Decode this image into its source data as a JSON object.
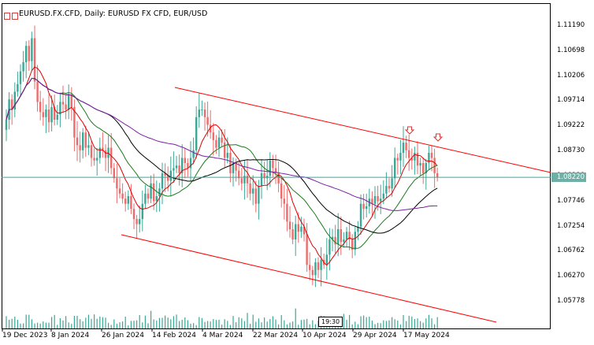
{
  "window": {
    "title": "EURUSD.FX.CFD, Daily:  EURUSD FX CFD, EUR/USD",
    "icons": [
      "chart-window-icon",
      "properties-icon"
    ]
  },
  "current_price": "1.08220",
  "time_marker": "19:30",
  "colors": {
    "bull": "#3aa896",
    "bear": "#ee6b6b",
    "channel": "#ff0000",
    "price_line": "#3aa896",
    "ma_fast": "#e00000",
    "ma_mid": "#1c7a1c",
    "ma_slow": "#000000",
    "ma_long": "#7a1fa2",
    "volume": "#3aa896"
  },
  "chart_data": {
    "type": "candlestick",
    "symbol": "EURUSD.FX.CFD",
    "timeframe": "Daily",
    "y_axis": {
      "ticks": [
        "1.11190",
        "1.10698",
        "1.10206",
        "1.09714",
        "1.09222",
        "1.08730",
        "1.08238",
        "1.07746",
        "1.07254",
        "1.06762",
        "1.06270",
        "1.05778"
      ],
      "ylim": [
        1.0552,
        1.114
      ]
    },
    "x_axis": {
      "ticks": [
        "19 Dec 2023",
        "8 Jan 2024",
        "26 Jan 2024",
        "14 Feb 2024",
        "4 Mar 2024",
        "22 Mar 2024",
        "10 Apr 2024",
        "29 Apr 2024",
        "17 May 2024"
      ]
    },
    "closes": [
      1.0935,
      1.0975,
      1.0955,
      1.099,
      1.1005,
      1.103,
      1.1048,
      1.108,
      1.105,
      1.1095,
      1.101,
      1.097,
      1.095,
      1.094,
      1.0955,
      1.093,
      1.096,
      1.0935,
      1.0945,
      1.097,
      1.0965,
      1.0955,
      1.0985,
      1.096,
      1.09,
      1.0885,
      1.0875,
      1.091,
      1.088,
      1.0885,
      1.086,
      1.0855,
      1.086,
      1.088,
      1.0875,
      1.086,
      1.088,
      1.084,
      1.082,
      1.08,
      1.079,
      1.078,
      1.077,
      1.0785,
      1.076,
      1.074,
      1.073,
      1.074,
      1.077,
      1.079,
      1.078,
      1.081,
      1.0775,
      1.0785,
      1.08,
      1.083,
      1.0825,
      1.0815,
      1.0835,
      1.084,
      1.0845,
      1.083,
      1.086,
      1.085,
      1.084,
      1.086,
      1.0875,
      1.094,
      1.0955,
      1.0955,
      1.094,
      1.0925,
      1.091,
      1.0895,
      1.088,
      1.09,
      1.089,
      1.086,
      1.087,
      1.083,
      1.085,
      1.0835,
      1.082,
      1.081,
      1.0825,
      1.081,
      1.079,
      1.08,
      1.077,
      1.0805,
      1.083,
      1.082,
      1.0825,
      1.0855,
      1.084,
      1.083,
      1.081,
      1.078,
      1.077,
      1.0735,
      1.072,
      1.07,
      1.073,
      1.0715,
      1.0725,
      1.071,
      1.065,
      1.064,
      1.063,
      1.0655,
      1.064,
      1.066,
      1.065,
      1.067,
      1.07,
      1.0705,
      1.069,
      1.072,
      1.0695,
      1.07,
      1.0715,
      1.07,
      1.068,
      1.0715,
      1.0725,
      1.077,
      1.076,
      1.0765,
      1.078,
      1.077,
      1.0785,
      1.0775,
      1.078,
      1.079,
      1.0805,
      1.08,
      1.082,
      1.086,
      1.0855,
      1.087,
      1.089,
      1.0875,
      1.086,
      1.0855,
      1.087,
      1.0845,
      1.085,
      1.083,
      1.085,
      1.087,
      1.086,
      1.083,
      1.0822
    ],
    "moving_averages": [
      {
        "period_hint": "fast",
        "color": "#e00000"
      },
      {
        "period_hint": "mid",
        "color": "#1c7a1c"
      },
      {
        "period_hint": "slow",
        "color": "#000000"
      },
      {
        "period_hint": "long",
        "color": "#7a1fa2"
      }
    ],
    "channel": {
      "upper": [
        {
          "x_index": 35,
          "price": 1.095
        },
        {
          "x_index": 160,
          "price": 1.0825
        }
      ],
      "lower": [
        {
          "x_index": 24,
          "price": 1.073
        },
        {
          "x_index": 148,
          "price": 1.0545
        }
      ]
    },
    "arrows_down_at_index": [
      131,
      145
    ],
    "grid": false
  }
}
